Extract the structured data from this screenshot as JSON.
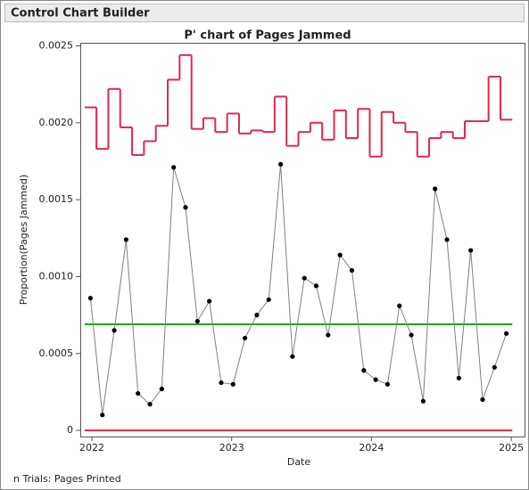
{
  "header": {
    "title": "Control Chart Builder"
  },
  "footer": "n Trials: Pages Printed",
  "chart_data": {
    "type": "line",
    "title": "P' chart of Pages Jammed",
    "x_label": "Date",
    "y_label": "Proportion(Pages Jammed)",
    "x": [
      2021.99,
      2022.075,
      2022.16,
      2022.245,
      2022.33,
      2022.415,
      2022.5,
      2022.585,
      2022.67,
      2022.755,
      2022.84,
      2022.925,
      2023.01,
      2023.095,
      2023.18,
      2023.265,
      2023.35,
      2023.435,
      2023.52,
      2023.605,
      2023.69,
      2023.775,
      2023.86,
      2023.945,
      2024.03,
      2024.115,
      2024.2,
      2024.285,
      2024.37,
      2024.455,
      2024.54,
      2024.625,
      2024.71,
      2024.795,
      2024.88,
      2024.965
    ],
    "values": [
      0.00086,
      0.0001,
      0.00065,
      0.00124,
      0.00024,
      0.00017,
      0.00027,
      0.00171,
      0.00145,
      0.00071,
      0.00084,
      0.00031,
      0.0003,
      0.0006,
      0.00075,
      0.00085,
      0.00173,
      0.00048,
      0.00099,
      0.00094,
      0.00062,
      0.00114,
      0.00104,
      0.00039,
      0.00033,
      0.0003,
      0.00081,
      0.00062,
      0.00019,
      0.00157,
      0.00124,
      0.00034,
      0.00117,
      0.0002,
      0.00041,
      0.00063
    ],
    "upper_limits": [
      0.0021,
      0.00183,
      0.00222,
      0.00197,
      0.00179,
      0.00188,
      0.00198,
      0.00228,
      0.00244,
      0.00196,
      0.00203,
      0.00194,
      0.00206,
      0.00193,
      0.00195,
      0.00194,
      0.00217,
      0.00185,
      0.00194,
      0.002,
      0.00189,
      0.00208,
      0.0019,
      0.00209,
      0.00178,
      0.00207,
      0.002,
      0.00194,
      0.00178,
      0.0019,
      0.00194,
      0.0019,
      0.00201,
      0.00201,
      0.0023,
      0.00202
    ],
    "center_line": 0.00069,
    "lower_limit": 0,
    "color": "#808080",
    "marker_color": "#000000",
    "limit_color": "#e0294b",
    "center_color": "#21a521",
    "xlim": [
      2021.917,
      2025.095
    ],
    "xticks": [
      2022,
      2023,
      2024,
      2025
    ],
    "ylim": [
      -4e-05,
      0.00252
    ],
    "yticks": [
      0,
      {
        "value": 0.0005,
        "label": "0.0005"
      },
      {
        "value": 0.001,
        "label": "0.0010"
      },
      {
        "value": 0.0015,
        "label": "0.0015"
      },
      {
        "value": 0.002,
        "label": "0.0020"
      },
      0.0025
    ],
    "grid": false
  }
}
